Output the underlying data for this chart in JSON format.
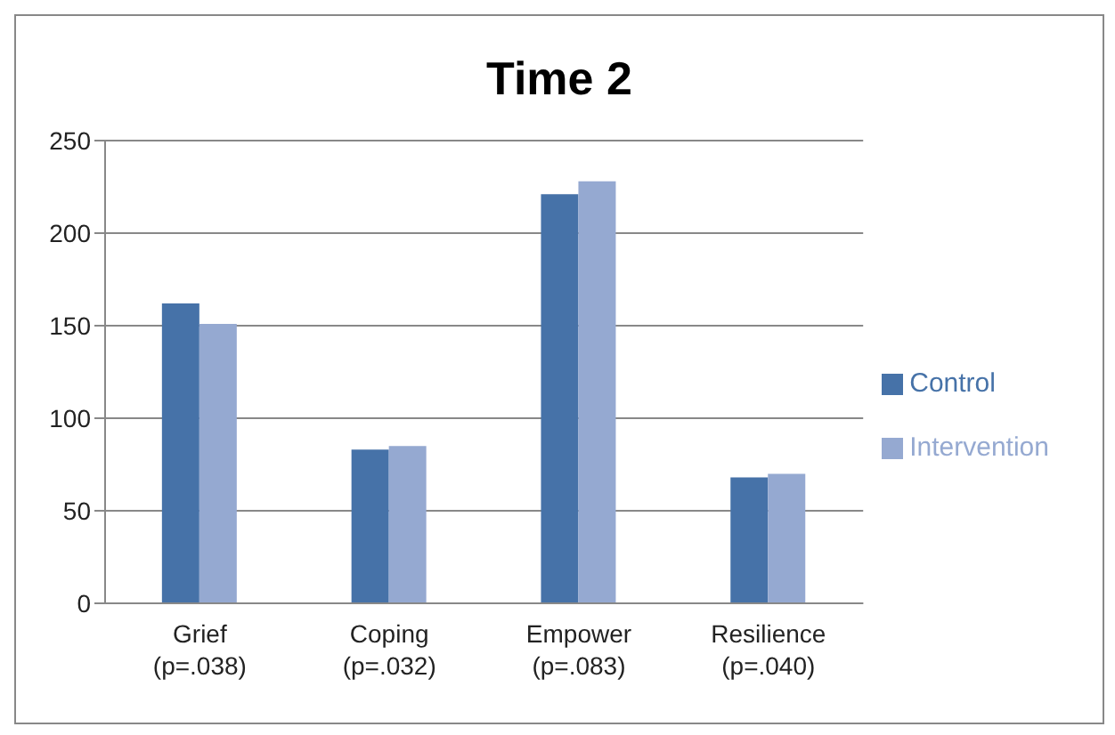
{
  "chart_data": {
    "type": "bar",
    "title": "Time 2",
    "categories": [
      "Grief\n(p=.038)",
      "Coping\n(p=.032)",
      "Empower\n(p=.083)",
      "Resilience\n(p=.040)"
    ],
    "series": [
      {
        "name": "Control",
        "color": "#4672a8",
        "values": [
          162,
          83,
          221,
          68
        ]
      },
      {
        "name": "Intervention",
        "color": "#95a9d1",
        "values": [
          151,
          85,
          228,
          70
        ]
      }
    ],
    "ylim": [
      0,
      250
    ],
    "yticks": [
      0,
      50,
      100,
      150,
      200,
      250
    ],
    "grid": "y",
    "legend": "right"
  }
}
